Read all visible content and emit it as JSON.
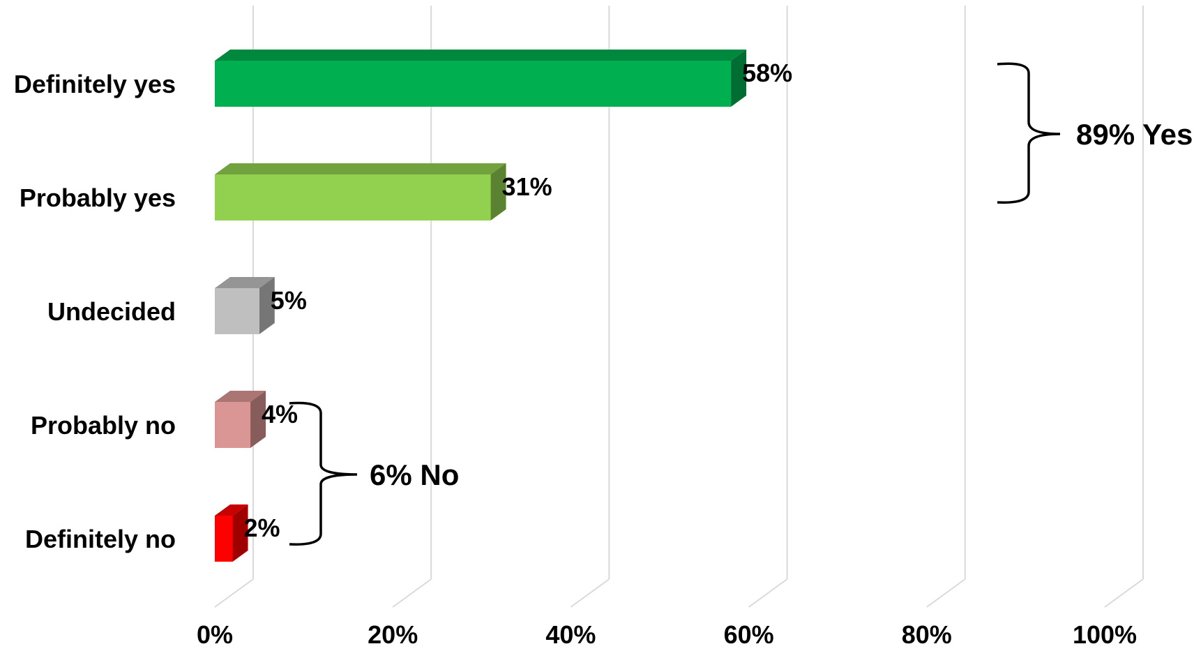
{
  "chart_data": {
    "type": "bar",
    "orientation": "horizontal",
    "style": "3d",
    "categories": [
      "Definitely yes",
      "Probably yes",
      "Undecided",
      "Probably no",
      "Definitely no"
    ],
    "values": [
      58,
      31,
      5,
      4,
      2
    ],
    "data_labels": [
      "58%",
      "31%",
      "5%",
      "4%",
      "2%"
    ],
    "colors": [
      "#00b050",
      "#92d050",
      "#bfbfbf",
      "#da9694",
      "#ff0000"
    ],
    "xlim": [
      0,
      100
    ],
    "x_ticks": [
      0,
      20,
      40,
      60,
      80,
      100
    ],
    "x_tick_labels": [
      "0%",
      "20%",
      "40%",
      "60%",
      "80%",
      "100%"
    ],
    "grid": true,
    "annotations": [
      {
        "text": "89% Yes",
        "brackets": [
          "Definitely yes",
          "Probably yes"
        ]
      },
      {
        "text": "6% No",
        "brackets": [
          "Probably no",
          "Definitely no"
        ]
      }
    ]
  }
}
